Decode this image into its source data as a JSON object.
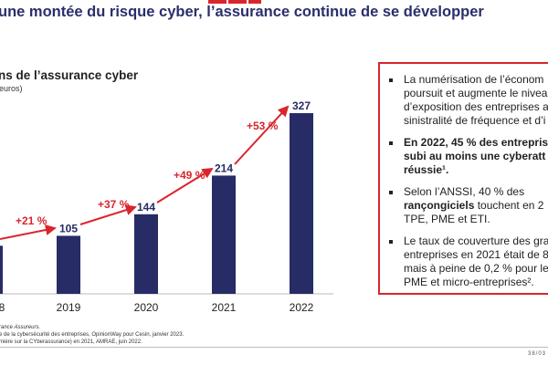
{
  "header": {
    "title": "une montée du risque cyber, l’assurance continue de se développer"
  },
  "chart_data": {
    "type": "bar",
    "title": "ns de l’assurance cyber",
    "subtitle": "euros)",
    "categories": [
      "8",
      "2019",
      "2020",
      "2021",
      "2022"
    ],
    "values": [
      87,
      105,
      144,
      214,
      327
    ],
    "value_labels": [
      "",
      "105",
      "144",
      "214",
      "327"
    ],
    "growth_labels": [
      "+21 %",
      "+37 %",
      "+49 %",
      "+53 %"
    ],
    "ylim": [
      0,
      340
    ],
    "bar_color": "#272b66",
    "arrow_color": "#d9262c"
  },
  "box": {
    "items": [
      {
        "text": "La numérisation de l’économ\npoursuit et augmente le nivea\nd’exposition des entreprises a\nsinistralité de fréquence et d’i"
      },
      {
        "bold": "En 2022, 45 % des entrepris\nsubi au moins une cyberatt\nréussie¹."
      },
      {
        "pre": "Selon l’ANSSI, 40 % des\n",
        "bold": "rançongiciels",
        "text": " touchent en 2\nTPE, PME et ETI."
      },
      {
        "text": "Le taux de couverture des gra\nentreprises en 2021 était de 8\nmais à peine de 0,2 % pour le\nPME et micro-entreprises²."
      }
    ]
  },
  "notes": [
    "rance Assureurs.",
    "e de la cybersécurité des entreprises, OpinionWay pour Cesin, janvier 2023.",
    "mière sur la CYberassurance) en 2021,  AMRAE, juin 2022."
  ],
  "footer": {
    "left": "s",
    "page": "38/03"
  }
}
